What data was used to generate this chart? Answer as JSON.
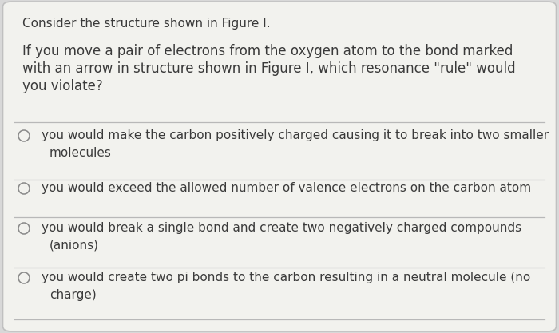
{
  "background_color": "#d8d8d8",
  "card_color": "#f2f2ee",
  "border_color": "#c0c0c0",
  "title": "Consider the structure shown in Figure I.",
  "question_lines": [
    "If you move a pair of electrons from the oxygen atom to the bond marked",
    "with an arrow in structure shown in Figure I, which resonance \"rule\" would",
    "you violate?"
  ],
  "options": [
    [
      "you would make the carbon positively charged causing it to break into two smaller",
      "molecules"
    ],
    [
      "you would exceed the allowed number of valence electrons on the carbon atom"
    ],
    [
      "you would break a single bond and create two negatively charged compounds",
      "(anions)"
    ],
    [
      "you would create two pi bonds to the carbon resulting in a neutral molecule (no",
      "charge)"
    ]
  ],
  "text_color": "#3a3a3a",
  "separator_color": "#b8b8b8",
  "radio_color": "#888888",
  "font_size_title": 11.0,
  "font_size_question": 12.0,
  "font_size_options": 11.0
}
